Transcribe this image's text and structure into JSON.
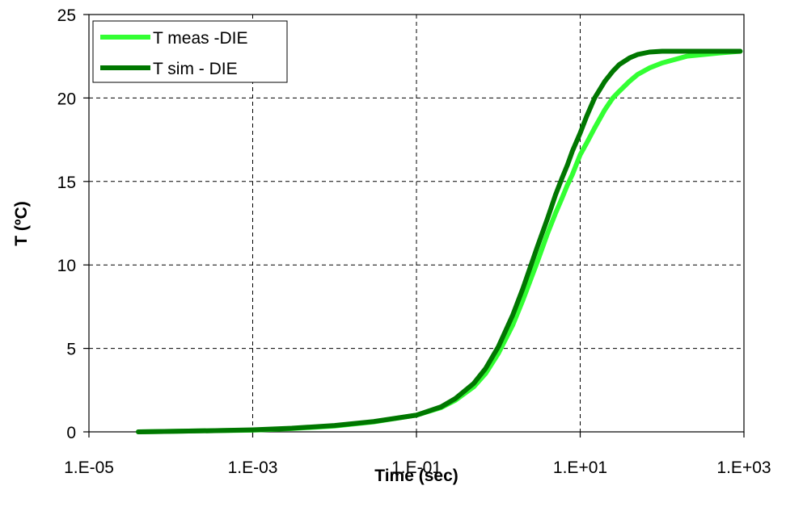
{
  "chart_data": {
    "type": "line",
    "xlabel": "Time (sec)",
    "ylabel": "T (ºC)",
    "x_scale": "log",
    "xlim": [
      1e-05,
      1000
    ],
    "ylim": [
      0,
      25
    ],
    "x_ticks": [
      1e-05,
      0.001,
      0.1,
      10,
      1000
    ],
    "x_tick_labels": [
      "1.E-05",
      "1.E-03",
      "1.E-01",
      "1.E+01",
      "1.E+03"
    ],
    "y_ticks": [
      0,
      5,
      10,
      15,
      20,
      25
    ],
    "y_tick_labels": [
      "0",
      "5",
      "10",
      "15",
      "20",
      "25"
    ],
    "grid": true,
    "legend_position": "top-left",
    "series": [
      {
        "name": "T meas -DIE",
        "color": "#33ff33",
        "x": [
          4e-05,
          0.0001,
          0.0003,
          0.001,
          0.003,
          0.01,
          0.03,
          0.1,
          0.2,
          0.3,
          0.5,
          0.7,
          1,
          1.5,
          2,
          3,
          4,
          5,
          6,
          7,
          8,
          10,
          12,
          15,
          20,
          25,
          30,
          40,
          50,
          70,
          100,
          200,
          500,
          900
        ],
        "y": [
          0.0,
          0.03,
          0.07,
          0.1,
          0.2,
          0.35,
          0.6,
          1.0,
          1.45,
          1.9,
          2.7,
          3.5,
          4.7,
          6.4,
          7.9,
          10.2,
          11.9,
          13.1,
          14.0,
          14.8,
          15.4,
          16.6,
          17.3,
          18.2,
          19.3,
          20.0,
          20.4,
          21.0,
          21.4,
          21.8,
          22.1,
          22.5,
          22.7,
          22.8
        ]
      },
      {
        "name": "T sim - DIE",
        "color": "#007700",
        "x": [
          4e-05,
          0.0001,
          0.0003,
          0.001,
          0.003,
          0.01,
          0.03,
          0.1,
          0.2,
          0.3,
          0.5,
          0.7,
          1,
          1.5,
          2,
          3,
          4,
          5,
          6,
          7,
          8,
          10,
          12,
          15,
          20,
          25,
          30,
          40,
          50,
          70,
          100,
          200,
          500,
          900
        ],
        "y": [
          0.0,
          0.03,
          0.07,
          0.12,
          0.22,
          0.38,
          0.62,
          1.0,
          1.5,
          2.0,
          2.9,
          3.8,
          5.1,
          7.0,
          8.6,
          11.1,
          12.8,
          14.2,
          15.2,
          16.0,
          16.8,
          17.9,
          18.9,
          20.0,
          21.0,
          21.6,
          22.0,
          22.4,
          22.6,
          22.75,
          22.8,
          22.8,
          22.8,
          22.8
        ]
      }
    ]
  }
}
